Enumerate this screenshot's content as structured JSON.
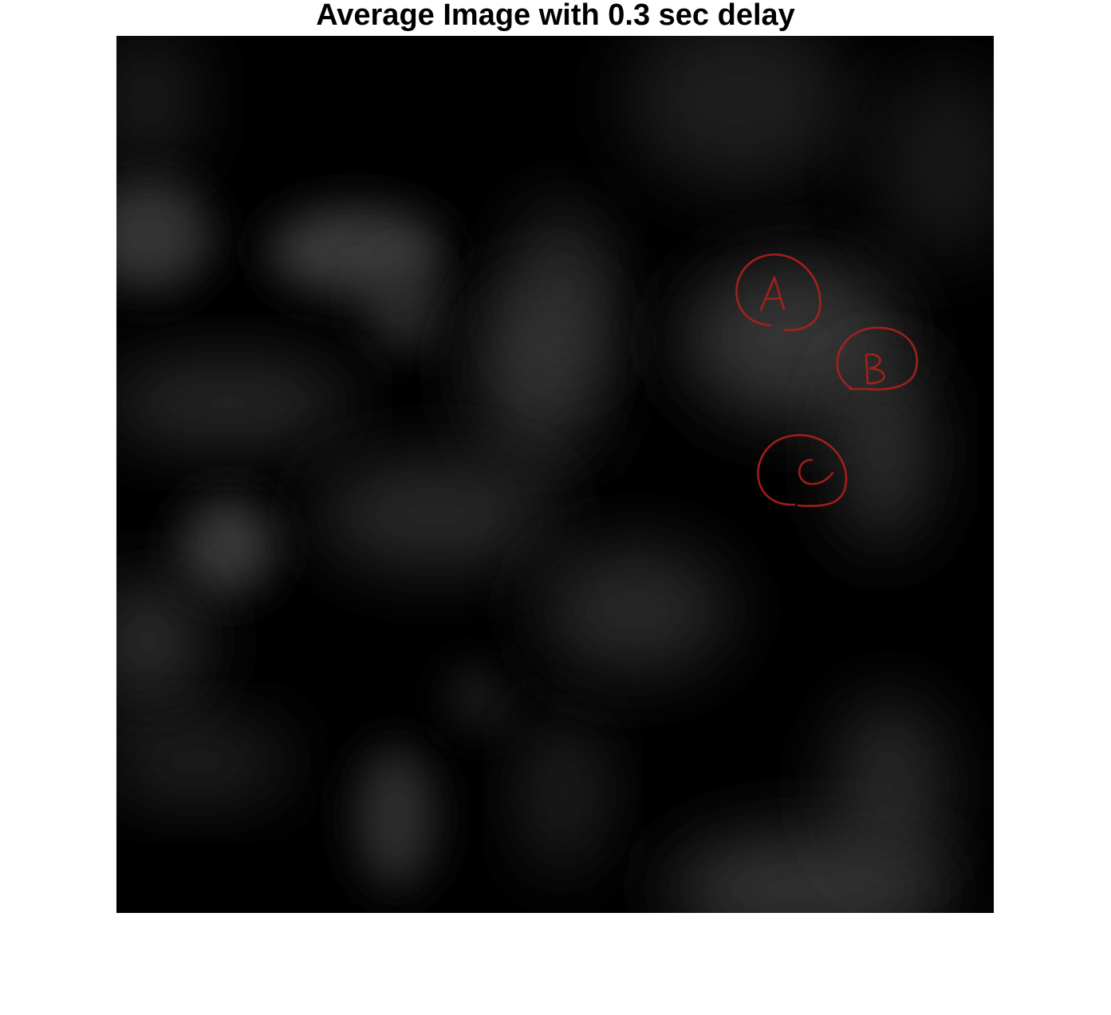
{
  "figure": {
    "title": "Average Image with 0.3 sec delay"
  },
  "image": {
    "background_color": "#000000",
    "blob_color": "#3a3a3a",
    "annotation_color": "#b0201c"
  },
  "annotations": [
    {
      "label": "A"
    },
    {
      "label": "B"
    },
    {
      "label": "C"
    }
  ]
}
